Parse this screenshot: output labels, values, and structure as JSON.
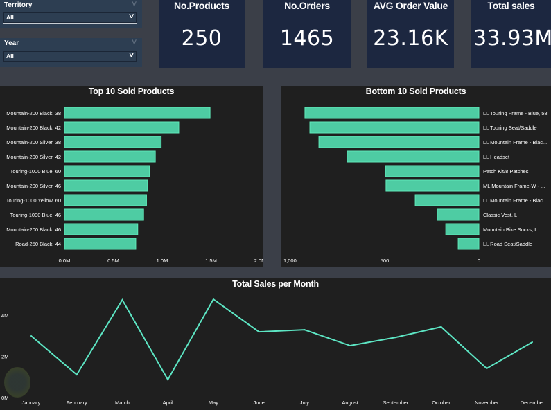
{
  "filters": [
    {
      "label": "Territory",
      "value": "All"
    },
    {
      "label": "Year",
      "value": "All"
    }
  ],
  "kpis": [
    {
      "title": "No.Products",
      "value": "250"
    },
    {
      "title": "No.Orders",
      "value": "1465"
    },
    {
      "title": "AVG Order Value",
      "value": "23.16K"
    },
    {
      "title": "Total sales",
      "value": "33.93M"
    }
  ],
  "colors": {
    "accent": "#4ecca3",
    "line": "#5de6c4",
    "panel_bg": "#1f1f1f",
    "card_bg": "#1c2740",
    "page_bg": "#3b3f48",
    "slicer_bg": "#2d3e52"
  },
  "chart_data": [
    {
      "type": "bar",
      "orientation": "horizontal",
      "title": "Top 10 Sold Products",
      "categories": [
        "Mountain-200 Black, 38",
        "Mountain-200 Black, 42",
        "Mountain-200 Silver, 38",
        "Mountain-200 Silver, 42",
        "Touring-1000 Blue, 60",
        "Mountain-200 Silver, 46",
        "Touring-1000 Yellow, 60",
        "Touring-1000 Blue, 46",
        "Mountain-200 Black, 46",
        "Road-250 Black, 44"
      ],
      "values": [
        1.49,
        1.17,
        0.99,
        0.93,
        0.87,
        0.85,
        0.84,
        0.81,
        0.75,
        0.73
      ],
      "unit": "M",
      "xlim": [
        0,
        2.0
      ],
      "xticks": [
        "0.0M",
        "0.5M",
        "1.0M",
        "1.5M",
        "2.0M"
      ],
      "xtick_values": [
        0,
        0.5,
        1.0,
        1.5,
        2.0
      ],
      "xlabel": "",
      "ylabel": "",
      "grid": false
    },
    {
      "type": "bar",
      "orientation": "horizontal",
      "direction": "reversed",
      "title": "Bottom 10 Sold Products",
      "categories": [
        "LL Touring Frame - Blue, 58",
        "LL Touring Seat/Saddle",
        "LL Mountain Frame - Blac...",
        "LL Headset",
        "Patch Kit/8 Patches",
        "ML Mountain Frame-W - ...",
        "LL Mountain Frame - Blac...",
        "Classic Vest, L",
        "Mountain Bike Socks, L",
        "LL Road Seat/Saddle"
      ],
      "values": [
        923,
        897,
        849,
        699,
        496,
        493,
        338,
        221,
        176,
        110
      ],
      "xlim": [
        0,
        1000
      ],
      "xticks": [
        "1,000",
        "500",
        "0"
      ],
      "xtick_values": [
        1000,
        500,
        0
      ],
      "xlabel": "",
      "ylabel": "",
      "grid": false
    },
    {
      "type": "line",
      "title": "Total Sales per Month",
      "x": [
        "January",
        "February",
        "March",
        "April",
        "May",
        "June",
        "July",
        "August",
        "September",
        "October",
        "November",
        "December"
      ],
      "series": [
        {
          "name": "Total Sales",
          "values": [
            2.99,
            1.11,
            4.74,
            0.87,
            4.77,
            3.19,
            3.29,
            2.52,
            2.92,
            3.43,
            1.41,
            2.69
          ]
        }
      ],
      "unit": "M",
      "ylim": [
        0,
        5.0
      ],
      "yticks": [
        "0M",
        "2M",
        "4M"
      ],
      "ytick_values": [
        0,
        2,
        4
      ],
      "xlabel": "",
      "ylabel": "",
      "grid": false
    }
  ]
}
